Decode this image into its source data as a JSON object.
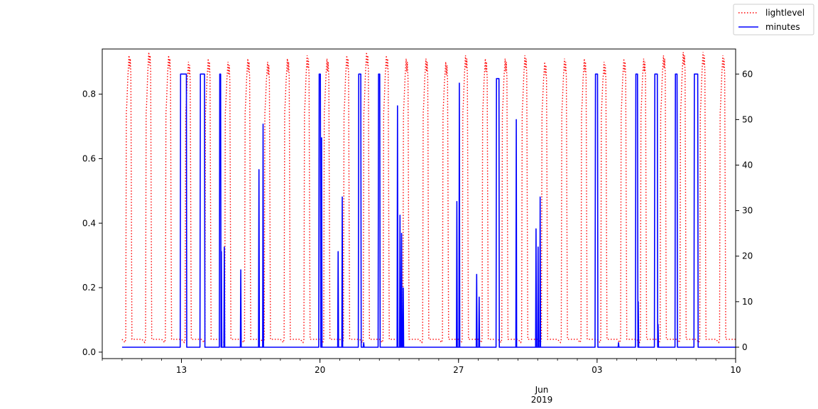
{
  "chart_data": {
    "type": "line",
    "title": "",
    "xlabel": "",
    "x_axis": {
      "range": [
        "2019-05-09",
        "2019-06-10"
      ],
      "major_tick_labels": [
        {
          "date": "2019-05-13",
          "label": "13"
        },
        {
          "date": "2019-05-20",
          "label": "20"
        },
        {
          "date": "2019-05-27",
          "label": "27"
        },
        {
          "date": "2019-06-03",
          "label": "03"
        },
        {
          "date": "2019-06-10",
          "label": "10"
        }
      ],
      "month_label": "Jun",
      "year_label": "2019"
    },
    "y_left": {
      "range": [
        -0.02,
        0.94
      ],
      "ticks": [
        0.0,
        0.2,
        0.4,
        0.6,
        0.8
      ],
      "tick_labels": [
        "0.0",
        "0.2",
        "0.4",
        "0.6",
        "0.8"
      ]
    },
    "y_right": {
      "range": [
        -2.5,
        65.5
      ],
      "ticks": [
        0,
        10,
        20,
        30,
        40,
        50,
        60
      ],
      "tick_labels": [
        "0",
        "10",
        "20",
        "30",
        "40",
        "50",
        "60"
      ]
    },
    "grid": false,
    "legend": {
      "placement": "top-right",
      "entries": [
        "lightlevel",
        "minutes"
      ]
    },
    "series": [
      {
        "name": "lightlevel",
        "axis": "left",
        "color": "#ff0000",
        "style": "dotted",
        "day_range": [
          "2019-05-10",
          "2019-06-09"
        ],
        "daily_peaks": [
          0.92,
          0.93,
          0.92,
          0.9,
          0.91,
          0.9,
          0.91,
          0.9,
          0.91,
          0.92,
          0.91,
          0.92,
          0.93,
          0.92,
          0.91,
          0.91,
          0.9,
          0.92,
          0.91,
          0.91,
          0.92,
          0.9,
          0.91,
          0.91,
          0.9,
          0.91,
          0.91,
          0.92,
          0.93,
          0.93,
          0.92
        ],
        "night_level": 0.03,
        "day_level": 0.78
      },
      {
        "name": "minutes",
        "axis": "right",
        "color": "#0000ff",
        "style": "solid",
        "x_range": [
          "2019-05-10",
          "2019-06-10"
        ],
        "baseline": 0,
        "spikes": [
          {
            "start": "2019-05-12T23:00",
            "end": "2019-05-13T06:00",
            "value": 60
          },
          {
            "start": "2019-05-13T23:00",
            "end": "2019-05-14T04:00",
            "value": 60
          },
          {
            "start": "2019-05-14T22:30",
            "end": "2019-05-14T23:30",
            "value": 60
          },
          {
            "start": "2019-05-15T00:30",
            "value": 21
          },
          {
            "start": "2019-05-15T04:00",
            "value": 22
          },
          {
            "start": "2019-05-16T00:00",
            "value": 17
          },
          {
            "start": "2019-05-16T22:00",
            "value": 39
          },
          {
            "start": "2019-05-17T03:00",
            "value": 49
          },
          {
            "start": "2019-05-19T23:00",
            "end": "2019-05-20T00:30",
            "value": 60
          },
          {
            "start": "2019-05-20T02:00",
            "value": 46
          },
          {
            "start": "2019-05-20T22:00",
            "value": 21
          },
          {
            "start": "2019-05-21T03:00",
            "value": 33
          },
          {
            "start": "2019-05-21T23:00",
            "end": "2019-05-22T01:30",
            "value": 60
          },
          {
            "start": "2019-05-22T05:00",
            "value": 1
          },
          {
            "start": "2019-05-22T23:00",
            "end": "2019-05-23T00:30",
            "value": 60
          },
          {
            "start": "2019-05-23T22:00",
            "value": 53
          },
          {
            "start": "2019-05-24T01:00",
            "value": 29
          },
          {
            "start": "2019-05-24T03:00",
            "value": 25
          },
          {
            "start": "2019-05-24T05:00",
            "value": 13
          },
          {
            "start": "2019-05-26T22:00",
            "value": 32
          },
          {
            "start": "2019-05-27T01:00",
            "value": 58
          },
          {
            "start": "2019-05-27T22:00",
            "value": 16
          },
          {
            "start": "2019-05-28T01:00",
            "value": 11
          },
          {
            "start": "2019-05-28T22:00",
            "end": "2019-05-29T01:00",
            "value": 59
          },
          {
            "start": "2019-05-29T22:00",
            "value": 50
          },
          {
            "start": "2019-05-30T22:00",
            "value": 26
          },
          {
            "start": "2019-05-31T00:30",
            "value": 22
          },
          {
            "start": "2019-05-31T03:00",
            "value": 33
          },
          {
            "start": "2019-06-02T22:00",
            "end": "2019-06-03T00:30",
            "value": 60
          },
          {
            "start": "2019-06-04T02:00",
            "value": 1
          },
          {
            "start": "2019-06-04T23:00",
            "end": "2019-06-05T01:00",
            "value": 60
          },
          {
            "start": "2019-06-05T02:00",
            "value": 10
          },
          {
            "start": "2019-06-05T22:00",
            "end": "2019-06-06T01:00",
            "value": 60
          },
          {
            "start": "2019-06-06T02:00",
            "value": 5
          },
          {
            "start": "2019-06-06T23:00",
            "end": "2019-06-07T01:00",
            "value": 60
          },
          {
            "start": "2019-06-07T22:00",
            "end": "2019-06-08T02:00",
            "value": 60
          }
        ]
      }
    ]
  }
}
